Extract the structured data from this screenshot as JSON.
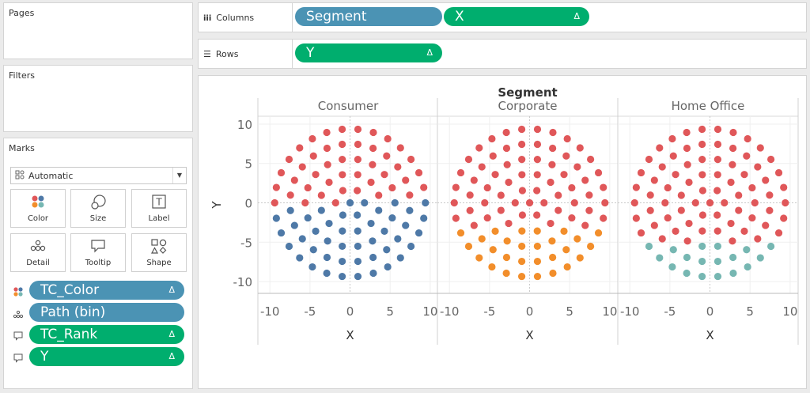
{
  "pages": {
    "title": "Pages"
  },
  "filters": {
    "title": "Filters"
  },
  "marks": {
    "title": "Marks",
    "mark_type": "Automatic",
    "buttons": [
      {
        "label": "Color",
        "icon": "color-icon"
      },
      {
        "label": "Size",
        "icon": "size-icon"
      },
      {
        "label": "Label",
        "icon": "label-icon"
      },
      {
        "label": "Detail",
        "icon": "detail-icon"
      },
      {
        "label": "Tooltip",
        "icon": "tooltip-icon"
      },
      {
        "label": "Shape",
        "icon": "shape-icon"
      }
    ],
    "cards": [
      {
        "label": "TC_Color",
        "type": "color",
        "delta": "Δ",
        "color": "#4b93b4"
      },
      {
        "label": "Path (bin)",
        "type": "detail",
        "delta": "",
        "color": "#4b93b4"
      },
      {
        "label": "TC_Rank",
        "type": "tooltip",
        "delta": "Δ",
        "color": "#00ae6e"
      },
      {
        "label": "Y",
        "type": "tooltip",
        "delta": "Δ",
        "color": "#00ae6e"
      }
    ]
  },
  "columns_shelf": {
    "label": "Columns",
    "icon": "columns-icon",
    "pills": [
      {
        "label": "Segment",
        "delta": "",
        "color": "#4b93b4"
      },
      {
        "label": "X",
        "delta": "Δ",
        "color": "#00ae6e"
      }
    ]
  },
  "rows_shelf": {
    "label": "Rows",
    "icon": "rows-icon",
    "pills": [
      {
        "label": "Y",
        "delta": "Δ",
        "color": "#00ae6e"
      }
    ]
  },
  "chart_data": {
    "type": "scatter",
    "title": "Segment",
    "xlabel": "X",
    "ylabel": "Y",
    "xlim": [
      -11.5,
      11
    ],
    "ylim": [
      -11.5,
      11
    ],
    "x_ticks": [
      -10,
      -5,
      0,
      5,
      10
    ],
    "y_ticks": [
      10,
      5,
      0,
      -5,
      -10
    ],
    "grid": true,
    "colors": {
      "top": "#e05759",
      "consumer_bottom": "#4e79a7",
      "corporate_bottom": "#f28e2b",
      "home_office_bottom": "#76b7b2"
    },
    "panels": [
      {
        "name": "Consumer",
        "split_y": 0,
        "bottom_color": "#4e79a7"
      },
      {
        "name": "Corporate",
        "split_y": -3.5,
        "bottom_color": "#f28e2b"
      },
      {
        "name": "Home Office",
        "split_y": -5.5,
        "bottom_color": "#76b7b2"
      }
    ],
    "points_description_note": ""
  }
}
